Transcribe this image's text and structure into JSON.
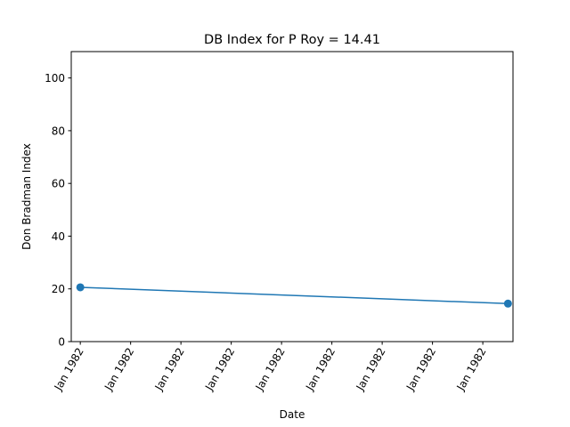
{
  "chart_data": {
    "type": "line",
    "title": "DB Index for P Roy = 14.41",
    "xlabel": "Date",
    "ylabel": "Don Bradman Index",
    "ylim": [
      0,
      110
    ],
    "yticks": [
      0,
      20,
      40,
      60,
      80,
      100
    ],
    "xlim": [
      -0.18,
      8.6
    ],
    "xtick_positions": [
      0,
      1,
      2,
      3,
      4,
      5,
      6,
      7,
      8
    ],
    "xtick_labels": [
      "Jan 1982",
      "Jan 1982",
      "Jan 1982",
      "Jan 1982",
      "Jan 1982",
      "Jan 1982",
      "Jan 1982",
      "Jan 1982",
      "Jan 1982"
    ],
    "grid": false,
    "series": [
      {
        "color": "#1f77b4",
        "marker": "circle",
        "points": [
          {
            "x": 0.0,
            "y": 20.6
          },
          {
            "x": 8.5,
            "y": 14.41
          }
        ]
      }
    ]
  }
}
